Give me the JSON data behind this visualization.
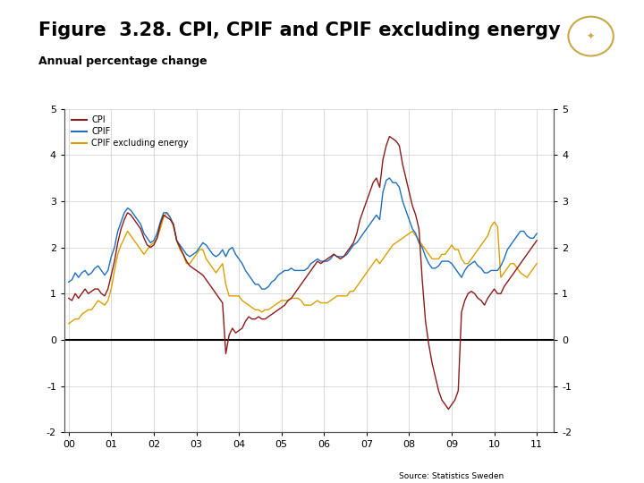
{
  "title": "Figure  3.28. CPI, CPIF and CPIF excluding energy",
  "subtitle": "Annual percentage change",
  "source": "Source: Statistics Sweden",
  "title_fontsize": 15,
  "subtitle_fontsize": 9,
  "ylim": [
    -2,
    5
  ],
  "yticks": [
    -2,
    -1,
    0,
    1,
    2,
    3,
    4,
    5
  ],
  "xlabel_ticks": [
    "00",
    "01",
    "02",
    "03",
    "04",
    "05",
    "06",
    "07",
    "08",
    "09",
    "10",
    "11"
  ],
  "colors": {
    "CPI": "#8B1A1A",
    "CPIF": "#1E6FBF",
    "CPIF_ex_energy": "#DAA000"
  },
  "line_width": 1.0,
  "grid_color": "#CCCCCC",
  "background_color": "#FFFFFF",
  "zero_line_color": "#000000",
  "footer_bar_color": "#003080",
  "logo_color": "#003080",
  "CPI": [
    0.9,
    0.85,
    1.0,
    0.9,
    1.0,
    1.1,
    1.0,
    1.05,
    1.1,
    1.1,
    1.0,
    0.95,
    1.1,
    1.4,
    1.7,
    2.1,
    2.4,
    2.6,
    2.75,
    2.7,
    2.6,
    2.5,
    2.4,
    2.2,
    2.05,
    2.0,
    2.05,
    2.2,
    2.5,
    2.7,
    2.65,
    2.6,
    2.5,
    2.15,
    2.0,
    1.85,
    1.7,
    1.6,
    1.55,
    1.5,
    1.45,
    1.4,
    1.3,
    1.2,
    1.1,
    1.0,
    0.9,
    0.8,
    -0.3,
    0.1,
    0.25,
    0.15,
    0.2,
    0.25,
    0.4,
    0.5,
    0.45,
    0.45,
    0.5,
    0.45,
    0.45,
    0.5,
    0.55,
    0.6,
    0.65,
    0.7,
    0.75,
    0.85,
    0.9,
    1.0,
    1.1,
    1.2,
    1.3,
    1.4,
    1.5,
    1.6,
    1.7,
    1.65,
    1.7,
    1.75,
    1.8,
    1.85,
    1.8,
    1.75,
    1.8,
    1.9,
    2.0,
    2.1,
    2.3,
    2.6,
    2.8,
    3.0,
    3.2,
    3.4,
    3.5,
    3.3,
    3.9,
    4.2,
    4.4,
    4.35,
    4.3,
    4.2,
    3.8,
    3.5,
    3.2,
    2.9,
    2.7,
    2.4,
    1.3,
    0.4,
    -0.1,
    -0.5,
    -0.8,
    -1.1,
    -1.3,
    -1.4,
    -1.5,
    -1.4,
    -1.3,
    -1.1,
    0.6,
    0.85,
    1.0,
    1.05,
    1.0,
    0.9,
    0.85,
    0.75,
    0.9,
    1.0,
    1.1,
    1.0,
    1.0,
    1.15,
    1.25,
    1.35,
    1.45,
    1.55,
    1.65,
    1.75,
    1.85,
    1.95,
    2.05,
    2.15
  ],
  "CPIF": [
    1.25,
    1.3,
    1.45,
    1.35,
    1.45,
    1.5,
    1.4,
    1.45,
    1.55,
    1.6,
    1.5,
    1.4,
    1.5,
    1.8,
    2.0,
    2.35,
    2.55,
    2.75,
    2.85,
    2.8,
    2.7,
    2.6,
    2.5,
    2.3,
    2.2,
    2.1,
    2.15,
    2.3,
    2.55,
    2.75,
    2.75,
    2.65,
    2.5,
    2.15,
    2.05,
    1.95,
    1.85,
    1.8,
    1.85,
    1.9,
    2.0,
    2.1,
    2.05,
    1.95,
    1.85,
    1.8,
    1.85,
    1.95,
    1.8,
    1.95,
    2.0,
    1.85,
    1.75,
    1.65,
    1.5,
    1.4,
    1.3,
    1.2,
    1.2,
    1.1,
    1.1,
    1.15,
    1.25,
    1.3,
    1.4,
    1.45,
    1.5,
    1.5,
    1.55,
    1.5,
    1.5,
    1.5,
    1.5,
    1.55,
    1.65,
    1.7,
    1.75,
    1.7,
    1.7,
    1.7,
    1.75,
    1.85,
    1.8,
    1.8,
    1.8,
    1.85,
    1.95,
    2.05,
    2.1,
    2.2,
    2.3,
    2.4,
    2.5,
    2.6,
    2.7,
    2.6,
    3.2,
    3.45,
    3.5,
    3.4,
    3.4,
    3.3,
    3.0,
    2.8,
    2.6,
    2.4,
    2.3,
    2.1,
    2.0,
    1.8,
    1.65,
    1.55,
    1.55,
    1.6,
    1.7,
    1.7,
    1.7,
    1.65,
    1.55,
    1.45,
    1.35,
    1.5,
    1.6,
    1.65,
    1.7,
    1.6,
    1.55,
    1.45,
    1.45,
    1.5,
    1.5,
    1.5,
    1.6,
    1.75,
    1.95,
    2.05,
    2.15,
    2.25,
    2.35,
    2.35,
    2.25,
    2.2,
    2.2,
    2.3
  ],
  "CPIF_ex_energy": [
    0.35,
    0.4,
    0.45,
    0.45,
    0.55,
    0.6,
    0.65,
    0.65,
    0.75,
    0.85,
    0.8,
    0.75,
    0.85,
    1.1,
    1.5,
    1.85,
    2.05,
    2.2,
    2.35,
    2.25,
    2.15,
    2.05,
    1.95,
    1.85,
    1.95,
    2.05,
    2.1,
    2.2,
    2.4,
    2.65,
    2.75,
    2.65,
    2.45,
    2.15,
    1.95,
    1.85,
    1.65,
    1.65,
    1.75,
    1.85,
    1.95,
    1.95,
    1.75,
    1.65,
    1.55,
    1.45,
    1.55,
    1.65,
    1.2,
    0.95,
    0.95,
    0.95,
    0.95,
    0.85,
    0.8,
    0.75,
    0.7,
    0.65,
    0.65,
    0.6,
    0.65,
    0.65,
    0.7,
    0.75,
    0.8,
    0.85,
    0.85,
    0.85,
    0.9,
    0.9,
    0.9,
    0.85,
    0.75,
    0.75,
    0.75,
    0.8,
    0.85,
    0.8,
    0.8,
    0.8,
    0.85,
    0.9,
    0.95,
    0.95,
    0.95,
    0.95,
    1.05,
    1.05,
    1.15,
    1.25,
    1.35,
    1.45,
    1.55,
    1.65,
    1.75,
    1.65,
    1.75,
    1.85,
    1.95,
    2.05,
    2.1,
    2.15,
    2.2,
    2.25,
    2.3,
    2.35,
    2.25,
    2.15,
    2.05,
    1.95,
    1.85,
    1.75,
    1.75,
    1.75,
    1.85,
    1.85,
    1.95,
    2.05,
    1.95,
    1.95,
    1.75,
    1.65,
    1.65,
    1.75,
    1.85,
    1.95,
    2.05,
    2.15,
    2.25,
    2.45,
    2.55,
    2.45,
    1.35,
    1.45,
    1.55,
    1.65,
    1.65,
    1.55,
    1.45,
    1.4,
    1.35,
    1.45,
    1.55,
    1.65
  ]
}
